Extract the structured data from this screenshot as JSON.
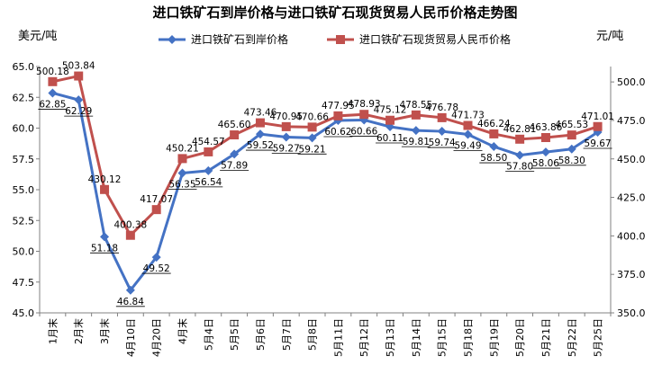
{
  "chart_data": {
    "type": "line",
    "title": "进口铁矿石到岸价格与进口铁矿石现货贸易人民币价格走势图",
    "y_left_unit": "美元/吨",
    "y_right_unit": "元/吨",
    "categories": [
      "1月末",
      "2月末",
      "3月末",
      "4月10日",
      "4月20日",
      "4月末",
      "5月4日",
      "5月5日",
      "5月6日",
      "5月7日",
      "5月8日",
      "5月11日",
      "5月12日",
      "5月13日",
      "5月14日",
      "5月15日",
      "5月18日",
      "5月19日",
      "5月20日",
      "5月21日",
      "5月22日",
      "5月25日"
    ],
    "y_left": {
      "min": 45.0,
      "max": 65.0,
      "step": 2.5,
      "ticks": [
        "45.0",
        "47.5",
        "50.0",
        "52.5",
        "55.0",
        "57.5",
        "60.0",
        "62.5",
        "65.0"
      ]
    },
    "y_right": {
      "min": 350.0,
      "max": 510.0,
      "step": 25,
      "ticks": [
        "350.0",
        "375.0",
        "400.0",
        "425.0",
        "450.0",
        "475.0",
        "500.0"
      ]
    },
    "legend_position": "top",
    "grid": false,
    "series": [
      {
        "name": "进口铁矿石到岸价格",
        "axis": "left",
        "color": "#4472C4",
        "marker": "diamond",
        "values": [
          62.85,
          62.29,
          51.18,
          46.84,
          49.52,
          56.35,
          56.54,
          57.89,
          59.52,
          59.27,
          59.21,
          60.62,
          60.66,
          60.11,
          59.81,
          59.74,
          59.49,
          58.5,
          57.8,
          58.06,
          58.3,
          59.67
        ],
        "labels": [
          "62.85",
          "62.29",
          "51.18",
          "46.84",
          "49.52",
          "56.35",
          "56.54",
          "57.89",
          "59.52",
          "59.27",
          "59.21",
          "60.62",
          "60.66",
          "60.11",
          "59.81",
          "59.74",
          "59.49",
          "58.50",
          "57.80",
          "58.06",
          "58.30",
          "59.67"
        ]
      },
      {
        "name": "进口铁矿石现货贸易人民币价格",
        "axis": "right",
        "color": "#C0504D",
        "marker": "square",
        "values": [
          500.18,
          503.84,
          430.12,
          400.38,
          417.07,
          450.21,
          454.57,
          465.6,
          473.46,
          470.95,
          470.66,
          477.95,
          478.93,
          475.12,
          478.55,
          476.78,
          471.73,
          466.24,
          462.81,
          463.86,
          465.53,
          471.01
        ],
        "labels": [
          "500.18",
          "503.84",
          "430.12",
          "400.38",
          "417.07",
          "450.21",
          "454.57",
          "465.60",
          "473.46",
          "470.95",
          "470.66",
          "477.95",
          "478.93",
          "475.12",
          "478.55",
          "476.78",
          "471.73",
          "466.24",
          "462.81",
          "463.86",
          "465.53",
          "471.01"
        ]
      }
    ]
  }
}
